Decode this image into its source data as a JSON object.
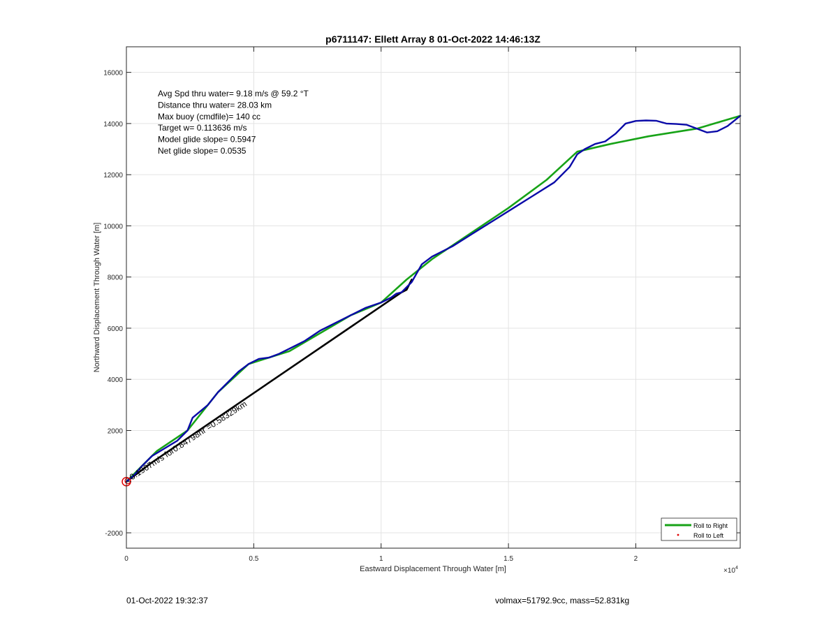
{
  "chart_data": {
    "type": "line",
    "title": "p6711147: Ellett Array 8 01-Oct-2022 14:46:13Z",
    "xlabel": "Eastward Displacement Through Water [m]",
    "ylabel": "Northward Displacement Through Water [m]",
    "x_exponent_label": "×10",
    "x_exponent_power": "4",
    "xlim": [
      0,
      24100
    ],
    "ylim": [
      -2600,
      17000
    ],
    "x_ticks": [
      0,
      5000,
      10000,
      15000,
      20000
    ],
    "x_tick_labels": [
      "0",
      "0.5",
      "1",
      "1.5",
      "2"
    ],
    "y_ticks": [
      -2000,
      0,
      2000,
      4000,
      6000,
      8000,
      10000,
      12000,
      14000,
      16000
    ],
    "y_tick_labels": [
      "-2000",
      "",
      "2000",
      "4000",
      "6000",
      "8000",
      "10000",
      "12000",
      "14000",
      "16000"
    ],
    "grid": true,
    "legend_position": "bottom-right",
    "legend": [
      {
        "label": "Roll to Right",
        "color": "#17a317",
        "marker": "line"
      },
      {
        "label": "Roll to Left",
        "color": "#e00000",
        "marker": "dot"
      }
    ],
    "annotations": [
      "Avg Spd thru water=  9.18 m/s @  59.2 °T",
      "Distance thru water= 28.03 km",
      "Max buoy (cmdfile)= 140 cc",
      "Target w= 0.113636 m/s",
      "Model glide slope= 0.5947",
      "Net glide slope= 0.0535"
    ],
    "rotated_annotation": "0.1907m/s for0.84798hr =0.58329km",
    "start_marker": {
      "x": 0,
      "y": 0,
      "color": "#e00000"
    },
    "series": [
      {
        "name": "Roll to Right",
        "color": "#17a317",
        "x": [
          0,
          300,
          700,
          1200,
          2400,
          3600,
          4800,
          6400,
          7600,
          8800,
          10000,
          11000,
          12000,
          13500,
          15000,
          16500,
          17700,
          19000,
          20500,
          22400,
          24100
        ],
        "y": [
          0,
          300,
          700,
          1200,
          2000,
          3500,
          4600,
          5100,
          5800,
          6500,
          7000,
          7900,
          8700,
          9700,
          10700,
          11800,
          12900,
          13200,
          13500,
          13800,
          14300
        ]
      },
      {
        "name": "",
        "color": "#000000",
        "x": [
          0,
          200,
          400,
          600,
          800,
          1000,
          10800,
          11000,
          11200
        ],
        "y": [
          0,
          150,
          300,
          450,
          600,
          750,
          7400,
          7500,
          7900
        ]
      },
      {
        "name": "",
        "color": "#0a0aa8",
        "x": [
          0,
          300,
          600,
          1000,
          1500,
          2000,
          2400,
          2600,
          3200,
          3600,
          4000,
          4400,
          4800,
          5200,
          5600,
          6000,
          6400,
          7000,
          7600,
          8200,
          8800,
          9400,
          10000,
          10400,
          10600,
          10800,
          11200,
          11600,
          12000,
          12800,
          13600,
          14400,
          15200,
          16000,
          16800,
          17400,
          17700,
          18000,
          18400,
          18800,
          19200,
          19600,
          20000,
          20400,
          20800,
          21200,
          21600,
          22000,
          22400,
          22800,
          23200,
          23600,
          24100
        ],
        "y": [
          0,
          250,
          600,
          1000,
          1300,
          1600,
          2000,
          2500,
          3000,
          3500,
          3900,
          4300,
          4600,
          4800,
          4850,
          5000,
          5200,
          5500,
          5900,
          6200,
          6500,
          6800,
          7000,
          7200,
          7350,
          7400,
          7800,
          8500,
          8800,
          9200,
          9700,
          10200,
          10700,
          11200,
          11700,
          12300,
          12800,
          13000,
          13200,
          13300,
          13600,
          14000,
          14100,
          14120,
          14110,
          14000,
          13980,
          13950,
          13800,
          13650,
          13700,
          13900,
          14300
        ]
      }
    ]
  },
  "footer": {
    "timestamp": "01-Oct-2022 19:32:37",
    "volmax": "volmax=51792.9cc, mass=52.831kg"
  }
}
